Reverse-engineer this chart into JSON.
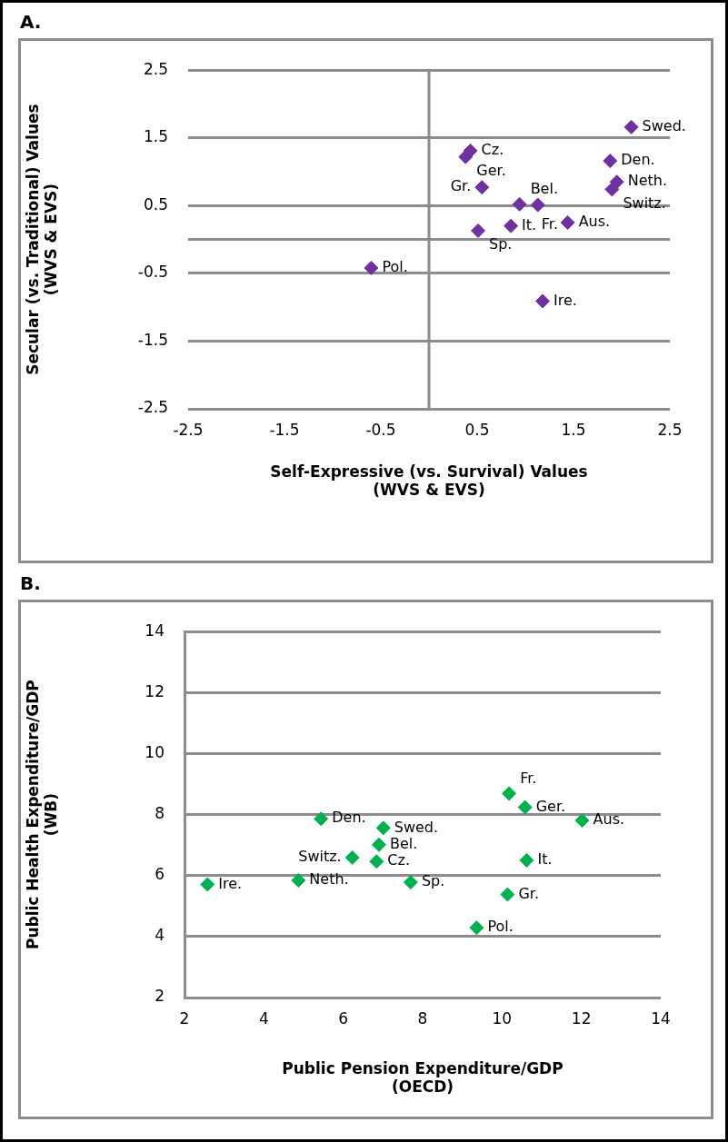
{
  "chart_data": [
    {
      "type": "scatter",
      "title": "A.",
      "xlabel": "Self-Expressive (vs. Survival) Values\n(WVS & EVS)",
      "ylabel": "Secular (vs. Traditional) Values\n(WVS & EVS)",
      "marker": "diamond",
      "grid": "y",
      "legend": false,
      "xlim": [
        -2.5,
        2.5
      ],
      "xticks": [
        -2.5,
        -1.5,
        -0.5,
        0.5,
        1.5,
        2.5
      ],
      "ylim": [
        -2.5,
        2.5
      ],
      "yticks": [
        -2.5,
        -1.5,
        -0.5,
        {
          "value": 0,
          "label": null
        },
        0.5,
        1.5,
        2.5
      ],
      "ref_lines": [
        {
          "axis": "x",
          "value": 0,
          "color": "#8c8c8c"
        }
      ],
      "series": [
        {
          "color": "#7030a0",
          "x": [
            2.1,
            0.43,
            0.38,
            1.88,
            1.95,
            1.9,
            0.55,
            0.94,
            1.13,
            1.44,
            0.85,
            0.51,
            -0.6,
            1.18
          ],
          "values": [
            1.66,
            1.31,
            1.22,
            1.16,
            0.85,
            0.74,
            0.77,
            0.52,
            0.51,
            0.25,
            0.2,
            0.13,
            -0.42,
            -0.91
          ]
        }
      ],
      "annotations": [
        {
          "text": "Swed.",
          "x": 2.1,
          "y": 1.66
        },
        {
          "text": "Cz.",
          "x": 0.43,
          "y": 1.31
        },
        {
          "text": "Ger.",
          "x": 0.38,
          "y": 1.22
        },
        {
          "text": "Den.",
          "x": 1.88,
          "y": 1.16
        },
        {
          "text": "Neth.",
          "x": 1.95,
          "y": 0.85
        },
        {
          "text": "Switz.",
          "x": 1.9,
          "y": 0.74
        },
        {
          "text": "Gr.",
          "x": 0.55,
          "y": 0.77
        },
        {
          "text": "Bel.",
          "x": 0.94,
          "y": 0.52
        },
        {
          "text": "Fr.",
          "x": 1.13,
          "y": 0.51
        },
        {
          "text": "Aus.",
          "x": 1.44,
          "y": 0.25
        },
        {
          "text": "It.",
          "x": 0.85,
          "y": 0.2
        },
        {
          "text": "Sp.",
          "x": 0.51,
          "y": 0.13
        },
        {
          "text": "Pol.",
          "x": -0.6,
          "y": -0.42
        },
        {
          "text": "Ire.",
          "x": 1.18,
          "y": -0.91
        }
      ]
    },
    {
      "type": "scatter",
      "title": "B.",
      "xlabel": "Public Pension Expenditure/GDP\n(OECD)",
      "ylabel": "Public Health Expenditure/GDP\n(WB)",
      "marker": "diamond",
      "grid": "y",
      "legend": false,
      "xlim": [
        2,
        14
      ],
      "xticks": [
        2,
        4,
        6,
        8,
        10,
        12,
        14
      ],
      "ylim": [
        2,
        14
      ],
      "yticks": [
        2,
        4,
        6,
        8,
        10,
        12,
        14
      ],
      "series": [
        {
          "color": "#00b050",
          "x": [
            2.58,
            4.87,
            5.44,
            6.23,
            6.84,
            6.9,
            7.01,
            7.7,
            9.36,
            10.14,
            10.18,
            10.58,
            10.62,
            12.02
          ],
          "values": [
            5.71,
            5.84,
            7.86,
            6.59,
            6.46,
            7.01,
            7.56,
            5.78,
            4.29,
            5.38,
            8.69,
            8.24,
            6.5,
            7.81
          ]
        }
      ],
      "annotations": [
        {
          "text": "Ire.",
          "x": 2.58,
          "y": 5.71
        },
        {
          "text": "Neth.",
          "x": 4.87,
          "y": 5.84
        },
        {
          "text": "Den.",
          "x": 5.44,
          "y": 7.86
        },
        {
          "text": "Switz.",
          "x": 6.23,
          "y": 6.59
        },
        {
          "text": "Cz.",
          "x": 6.84,
          "y": 6.46
        },
        {
          "text": "Bel.",
          "x": 6.9,
          "y": 7.01
        },
        {
          "text": "Swed.",
          "x": 7.01,
          "y": 7.56
        },
        {
          "text": "Sp.",
          "x": 7.7,
          "y": 5.78
        },
        {
          "text": "Pol.",
          "x": 9.36,
          "y": 4.29
        },
        {
          "text": "Gr.",
          "x": 10.14,
          "y": 5.38
        },
        {
          "text": "Fr.",
          "x": 10.18,
          "y": 8.69
        },
        {
          "text": "Ger.",
          "x": 10.58,
          "y": 8.24
        },
        {
          "text": "It.",
          "x": 10.62,
          "y": 6.5
        },
        {
          "text": "Aus.",
          "x": 12.02,
          "y": 7.81
        }
      ]
    }
  ]
}
